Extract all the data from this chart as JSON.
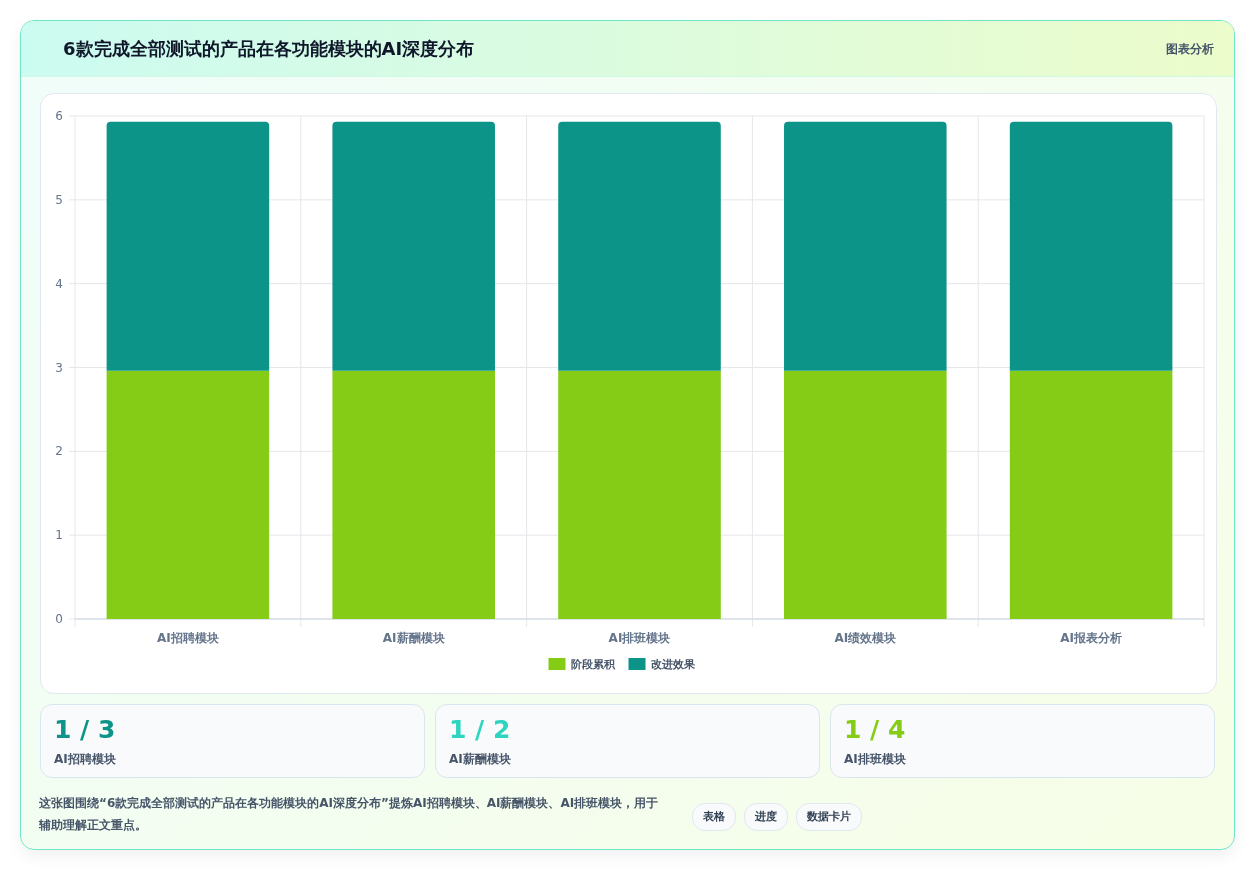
{
  "chart_data": [
    {
      "type": "bar",
      "title": "6款完成全部测试的产品在各功能模块的AI深度分布",
      "subtitle": "图表分析",
      "categories": [
        "AI招聘模块",
        "AI薪酬模块",
        "AI排班模块",
        "AI绩效模块",
        "AI报表分析"
      ],
      "stacked": true,
      "series": [
        {
          "name": "阶段累积",
          "color": "#84cc16",
          "values": [
            2.96,
            2.96,
            2.96,
            2.96,
            2.96
          ]
        },
        {
          "name": "改进效果",
          "color": "#0d9488",
          "values": [
            2.97,
            2.97,
            2.97,
            2.97,
            2.97
          ]
        }
      ],
      "ylim": [
        0,
        6
      ],
      "yticks": [
        0,
        1,
        2,
        3,
        4,
        5,
        6
      ],
      "grid": true,
      "legend": "bottom"
    },
    {
      "type": "other",
      "categories": [
        "AI招聘模块",
        "AI薪酬模块",
        "AI排班模块"
      ],
      "value_labels": [
        "1 / 3",
        "1 / 2",
        "1 / 4"
      ],
      "annotations": [
        "这张图围绕“6款完成全部测试的产品在各功能模块的AI深度分布”提炼AI招聘模块、AI薪酬模块、AI排班模块，用于辅助理解正文重点。",
        "表格",
        "进度",
        "数据卡片"
      ]
    }
  ]
}
